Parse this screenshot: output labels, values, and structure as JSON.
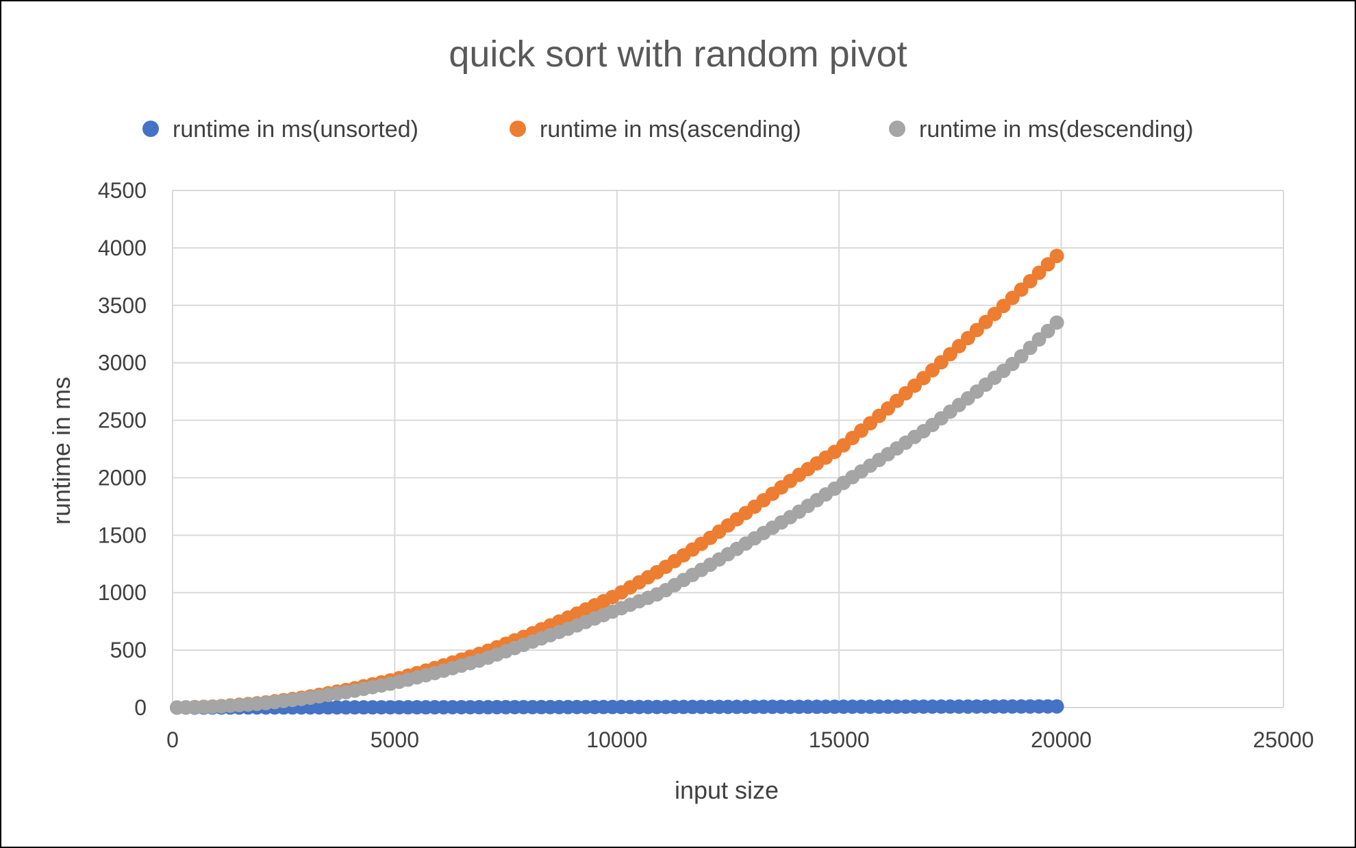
{
  "chart_data": {
    "type": "scatter",
    "title": "quick sort with random pivot",
    "xlabel": "input size",
    "ylabel": "runtime in ms",
    "xlim": [
      0,
      25000
    ],
    "ylim": [
      0,
      4500
    ],
    "xticks": [
      0,
      5000,
      10000,
      15000,
      20000,
      25000
    ],
    "yticks": [
      0,
      500,
      1000,
      1500,
      2000,
      2500,
      3000,
      3500,
      4000,
      4500
    ],
    "grid": true,
    "legend_position": "top",
    "series": [
      {
        "name": "runtime in ms(unsorted)",
        "color": "#4472C4",
        "x": [
          100,
          2000,
          4000,
          6000,
          8000,
          10000,
          12000,
          14000,
          16000,
          18000,
          19900
        ],
        "y": [
          0,
          1,
          2,
          3,
          4,
          5,
          6,
          7,
          8,
          9,
          10
        ]
      },
      {
        "name": "runtime in ms(ascending)",
        "color": "#ED7D31",
        "x": [
          100,
          1000,
          2000,
          3000,
          4000,
          5000,
          6000,
          7000,
          8000,
          9000,
          10000,
          11000,
          12000,
          13000,
          14000,
          15000,
          16000,
          17000,
          18000,
          19000,
          19900
        ],
        "y": [
          0,
          10,
          40,
          90,
          160,
          245,
          355,
          480,
          630,
          800,
          980,
          1200,
          1450,
          1720,
          2000,
          2250,
          2570,
          2900,
          3250,
          3600,
          3930
        ]
      },
      {
        "name": "runtime in ms(descending)",
        "color": "#A5A5A5",
        "x": [
          100,
          1000,
          2000,
          3000,
          4000,
          5000,
          6000,
          7000,
          8000,
          9000,
          10000,
          11000,
          12000,
          13000,
          14000,
          15000,
          16000,
          17000,
          18000,
          19000,
          19900
        ],
        "y": [
          0,
          8,
          35,
          80,
          140,
          215,
          310,
          420,
          560,
          700,
          850,
          1000,
          1220,
          1450,
          1680,
          1930,
          2180,
          2430,
          2720,
          3020,
          3350
        ]
      }
    ]
  }
}
